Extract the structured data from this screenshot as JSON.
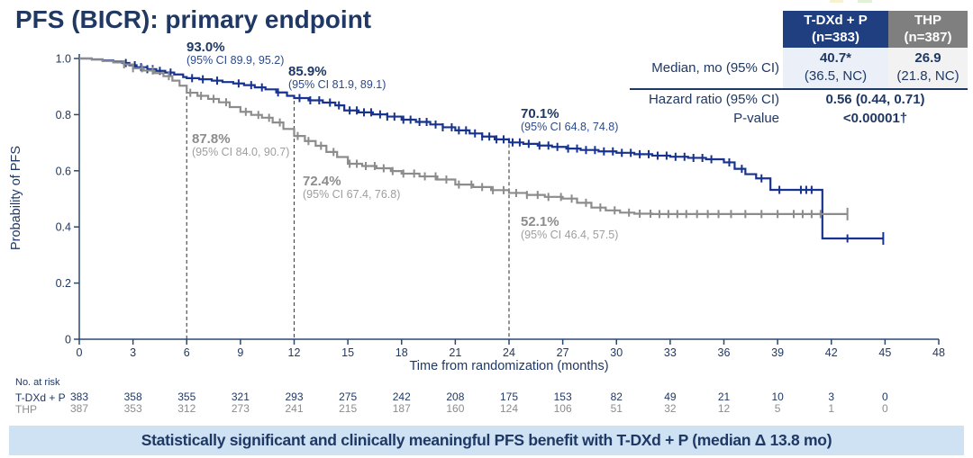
{
  "slide": {
    "title": "PFS (BICR): primary endpoint",
    "banner": "Statistically significant and clinically meaningful PFS benefit with T-DXd + P (median Δ 13.8 mo)"
  },
  "stats_table": {
    "columns": [
      {
        "name": "T-DXd + P",
        "n": "(n=383)"
      },
      {
        "name": "THP",
        "n": "(n=387)"
      }
    ],
    "median_row": {
      "label": "Median, mo (95% CI)",
      "tdxd_value": "40.7*",
      "tdxd_ci": "(36.5, NC)",
      "thp_value": "26.9",
      "thp_ci": "(21.8, NC)"
    },
    "hazard_row": {
      "label": "Hazard ratio (95% CI)",
      "value": "0.56 (0.44, 0.71)"
    },
    "pvalue_row": {
      "label": "P-value",
      "value": "<0.00001†"
    }
  },
  "chart_data": {
    "type": "line",
    "subtype": "kaplan-meier-step",
    "xlabel": "Time from randomization (months)",
    "ylabel": "Probability of PFS",
    "xlim": [
      0,
      48
    ],
    "xticks": [
      0,
      3,
      6,
      9,
      12,
      15,
      18,
      21,
      24,
      27,
      30,
      33,
      36,
      39,
      42,
      45,
      48
    ],
    "ylim": [
      0,
      1
    ],
    "ytick_values": [
      1.0,
      0.8,
      0.6,
      0.4,
      0.2,
      0
    ],
    "ytick_labels": [
      "1.0",
      "0.8",
      "0.6",
      "0.4",
      "0.2",
      "0"
    ],
    "guide_months": [
      6,
      12,
      24
    ],
    "grid": false,
    "legend": "none",
    "series": [
      {
        "name": "T-DXd + P",
        "color": "#17338f",
        "points": [
          [
            0,
            1.0
          ],
          [
            0.7,
            0.997
          ],
          [
            1.3,
            0.993
          ],
          [
            1.9,
            0.989
          ],
          [
            2.4,
            0.984
          ],
          [
            2.8,
            0.976
          ],
          [
            3.2,
            0.969
          ],
          [
            3.8,
            0.962
          ],
          [
            4.3,
            0.956
          ],
          [
            4.8,
            0.95
          ],
          [
            5.3,
            0.943
          ],
          [
            5.8,
            0.934
          ],
          [
            6.0,
            0.93
          ],
          [
            6.7,
            0.926
          ],
          [
            7.4,
            0.921
          ],
          [
            8.0,
            0.916
          ],
          [
            8.6,
            0.911
          ],
          [
            9.2,
            0.905
          ],
          [
            9.8,
            0.897
          ],
          [
            10.4,
            0.89
          ],
          [
            11.0,
            0.879
          ],
          [
            11.6,
            0.867
          ],
          [
            12.0,
            0.859
          ],
          [
            12.8,
            0.851
          ],
          [
            13.6,
            0.843
          ],
          [
            14.3,
            0.833
          ],
          [
            14.8,
            0.815
          ],
          [
            15.6,
            0.808
          ],
          [
            16.4,
            0.801
          ],
          [
            17.2,
            0.793
          ],
          [
            18.0,
            0.782
          ],
          [
            18.8,
            0.774
          ],
          [
            19.6,
            0.765
          ],
          [
            20.3,
            0.755
          ],
          [
            21.0,
            0.744
          ],
          [
            21.8,
            0.733
          ],
          [
            22.5,
            0.722
          ],
          [
            23.2,
            0.712
          ],
          [
            24.0,
            0.701
          ],
          [
            24.8,
            0.696
          ],
          [
            25.6,
            0.69
          ],
          [
            26.4,
            0.685
          ],
          [
            27.2,
            0.679
          ],
          [
            28.0,
            0.674
          ],
          [
            29.0,
            0.669
          ],
          [
            30.0,
            0.664
          ],
          [
            31.0,
            0.659
          ],
          [
            32.0,
            0.654
          ],
          [
            33.0,
            0.65
          ],
          [
            34.0,
            0.646
          ],
          [
            35.0,
            0.641
          ],
          [
            36.0,
            0.63
          ],
          [
            36.6,
            0.607
          ],
          [
            37.2,
            0.588
          ],
          [
            37.8,
            0.573
          ],
          [
            38.6,
            0.532
          ],
          [
            41.5,
            0.359
          ]
        ],
        "censor_months": [
          2.6,
          3.1,
          3.45,
          3.8,
          4.1,
          4.5,
          5.1,
          6.3,
          6.9,
          7.7,
          8.9,
          9.6,
          10.2,
          11.1,
          12.3,
          12.9,
          13.4,
          14.0,
          14.5,
          15.1,
          15.5,
          15.9,
          16.3,
          16.8,
          17.2,
          17.6,
          18.1,
          18.5,
          19.0,
          19.4,
          19.9,
          20.3,
          20.8,
          21.2,
          21.6,
          22.1,
          22.5,
          22.9,
          23.3,
          23.7,
          24.2,
          24.6,
          25.1,
          25.7,
          26.2,
          26.7,
          27.3,
          27.8,
          28.3,
          28.8,
          29.3,
          29.8,
          30.3,
          30.8,
          31.3,
          31.8,
          32.3,
          32.8,
          33.3,
          33.8,
          34.3,
          34.8,
          35.3,
          36.3,
          37.0,
          38.1,
          39.1,
          40.3,
          40.6,
          40.9,
          42.9
        ],
        "end_month": 44.9
      },
      {
        "name": "THP",
        "color": "#8c8c8c",
        "points": [
          [
            0,
            1.0
          ],
          [
            0.7,
            0.996
          ],
          [
            1.3,
            0.991
          ],
          [
            1.9,
            0.986
          ],
          [
            2.5,
            0.979
          ],
          [
            3.0,
            0.965
          ],
          [
            3.6,
            0.957
          ],
          [
            4.2,
            0.948
          ],
          [
            4.7,
            0.937
          ],
          [
            5.2,
            0.921
          ],
          [
            5.6,
            0.903
          ],
          [
            6.0,
            0.878
          ],
          [
            6.6,
            0.867
          ],
          [
            7.2,
            0.856
          ],
          [
            7.8,
            0.844
          ],
          [
            8.4,
            0.827
          ],
          [
            9.0,
            0.81
          ],
          [
            9.6,
            0.799
          ],
          [
            10.2,
            0.789
          ],
          [
            10.8,
            0.772
          ],
          [
            11.4,
            0.749
          ],
          [
            12.0,
            0.724
          ],
          [
            12.6,
            0.706
          ],
          [
            13.2,
            0.689
          ],
          [
            13.8,
            0.667
          ],
          [
            14.4,
            0.649
          ],
          [
            15.0,
            0.625
          ],
          [
            15.8,
            0.617
          ],
          [
            16.6,
            0.609
          ],
          [
            17.4,
            0.599
          ],
          [
            18.0,
            0.59
          ],
          [
            19.0,
            0.58
          ],
          [
            20.0,
            0.569
          ],
          [
            21.0,
            0.551
          ],
          [
            22.0,
            0.542
          ],
          [
            23.0,
            0.531
          ],
          [
            24.0,
            0.521
          ],
          [
            25.0,
            0.514
          ],
          [
            26.0,
            0.507
          ],
          [
            27.0,
            0.501
          ],
          [
            27.8,
            0.486
          ],
          [
            28.6,
            0.469
          ],
          [
            29.4,
            0.459
          ],
          [
            30.2,
            0.451
          ],
          [
            31.0,
            0.447
          ],
          [
            32.0,
            0.446
          ]
        ],
        "censor_months": [
          2.5,
          3.0,
          3.5,
          4.1,
          5.0,
          6.2,
          6.8,
          7.5,
          8.2,
          9.3,
          10.0,
          10.6,
          11.2,
          12.2,
          12.8,
          13.5,
          14.2,
          15.1,
          15.5,
          16.0,
          16.5,
          17.0,
          17.5,
          18.1,
          18.7,
          19.3,
          19.9,
          20.5,
          21.2,
          21.9,
          22.5,
          23.1,
          23.7,
          24.4,
          25.0,
          25.6,
          26.2,
          26.9,
          27.5,
          28.3,
          29.1,
          29.9,
          30.7,
          31.3,
          31.9,
          32.4,
          32.9,
          33.4,
          33.9,
          34.5,
          35.1,
          35.7,
          36.4,
          37.2,
          38.1,
          39.0,
          39.9,
          40.4,
          40.9,
          41.4
        ],
        "end_month": 42.9
      }
    ],
    "annotations": [
      {
        "series": "T-DXd + P",
        "month": 6,
        "rate": "93.0%",
        "ci": "(95% CI 89.9, 95.2)"
      },
      {
        "series": "T-DXd + P",
        "month": 12,
        "rate": "85.9%",
        "ci": "(95% CI 81.9, 89.1)"
      },
      {
        "series": "T-DXd + P",
        "month": 24,
        "rate": "70.1%",
        "ci": "(95% CI 64.8, 74.8)"
      },
      {
        "series": "THP",
        "month": 6,
        "rate": "87.8%",
        "ci": "(95% CI 84.0, 90.7)"
      },
      {
        "series": "THP",
        "month": 12,
        "rate": "72.4%",
        "ci": "(95% CI 67.4, 76.8)"
      },
      {
        "series": "THP",
        "month": 24,
        "rate": "52.1%",
        "ci": "(95% CI 46.4, 57.5)"
      }
    ]
  },
  "at_risk": {
    "heading": "No. at risk",
    "months": [
      0,
      3,
      6,
      9,
      12,
      15,
      18,
      21,
      24,
      27,
      30,
      33,
      36,
      39,
      42,
      45
    ],
    "rows": [
      {
        "label": "T-DXd + P",
        "counts": [
          383,
          358,
          355,
          321,
          293,
          275,
          242,
          208,
          175,
          153,
          82,
          49,
          21,
          10,
          3,
          0
        ]
      },
      {
        "label": "THP",
        "counts": [
          387,
          353,
          312,
          273,
          241,
          215,
          187,
          160,
          124,
          106,
          51,
          32,
          12,
          5,
          1,
          0
        ]
      }
    ]
  },
  "colors": {
    "navy_text": "#1f3864",
    "tdxd_curve": "#17338f",
    "thp_curve": "#8c8c8c",
    "header_blue_bg": "#203f80",
    "header_gray_bg": "#7f7f7f",
    "banner_bg": "#cfe2f3",
    "axis": "#2c4770"
  }
}
